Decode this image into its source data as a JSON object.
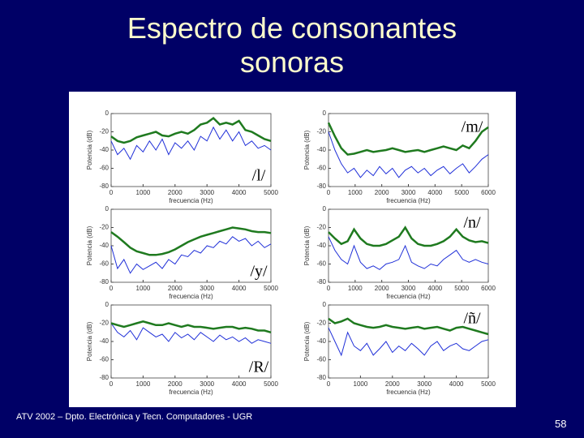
{
  "title": "Espectro de consonantes sonoras",
  "footer": "ATV 2002 – Dpto. Electrónica y Tecn. Computadores - UGR",
  "page_number": "58",
  "chart_data": [
    {
      "type": "line",
      "annotation": "/l/",
      "xlabel": "frecuencia (Hz)",
      "ylabel": "Potencia (dB)",
      "xlim": [
        0,
        5000
      ],
      "xticks": [
        0,
        1000,
        2000,
        3000,
        4000,
        5000
      ],
      "ylim": [
        -80,
        0
      ],
      "yticks": [
        0,
        -20,
        -40,
        -60,
        -80
      ],
      "x": [
        0,
        200,
        400,
        600,
        800,
        1000,
        1200,
        1400,
        1600,
        1800,
        2000,
        2200,
        2400,
        2600,
        2800,
        3000,
        3200,
        3400,
        3600,
        3800,
        4000,
        4200,
        4400,
        4600,
        4800,
        5000
      ],
      "series": [
        {
          "color": "#1f2fd8",
          "values": [
            -30,
            -45,
            -38,
            -50,
            -35,
            -42,
            -30,
            -40,
            -28,
            -45,
            -32,
            -38,
            -30,
            -40,
            -25,
            -30,
            -15,
            -28,
            -18,
            -30,
            -20,
            -35,
            -30,
            -38,
            -35,
            -40
          ]
        },
        {
          "color": "#1f7a1f",
          "values": [
            -25,
            -30,
            -32,
            -30,
            -26,
            -24,
            -22,
            -20,
            -24,
            -25,
            -22,
            -20,
            -22,
            -18,
            -12,
            -10,
            -5,
            -12,
            -10,
            -12,
            -8,
            -18,
            -20,
            -24,
            -28,
            -30
          ]
        }
      ]
    },
    {
      "type": "line",
      "annotation": "/m/",
      "xlabel": "frecuencia (Hz)",
      "ylabel": "Potencia (dB)",
      "xlim": [
        0,
        6000
      ],
      "xticks": [
        0,
        1000,
        2000,
        3000,
        4000,
        5000,
        6000
      ],
      "ylim": [
        -80,
        0
      ],
      "yticks": [
        0,
        -20,
        -40,
        -60,
        -80
      ],
      "x": [
        0,
        240,
        480,
        720,
        960,
        1200,
        1440,
        1680,
        1920,
        2160,
        2400,
        2640,
        2880,
        3120,
        3360,
        3600,
        3840,
        4080,
        4320,
        4560,
        4800,
        5040,
        5280,
        5520,
        5760,
        6000
      ],
      "series": [
        {
          "color": "#1f2fd8",
          "values": [
            -20,
            -40,
            -55,
            -65,
            -60,
            -70,
            -62,
            -68,
            -58,
            -66,
            -60,
            -70,
            -62,
            -58,
            -65,
            -60,
            -68,
            -62,
            -58,
            -66,
            -60,
            -55,
            -65,
            -58,
            -50,
            -45
          ]
        },
        {
          "color": "#1f7a1f",
          "values": [
            -10,
            -25,
            -38,
            -45,
            -44,
            -42,
            -40,
            -42,
            -41,
            -40,
            -38,
            -40,
            -42,
            -41,
            -40,
            -42,
            -40,
            -38,
            -36,
            -38,
            -40,
            -35,
            -38,
            -30,
            -20,
            -15
          ]
        }
      ]
    },
    {
      "type": "line",
      "annotation": "/y/",
      "xlabel": "frecuencia (Hz)",
      "ylabel": "Potencia (dB)",
      "xlim": [
        0,
        5000
      ],
      "xticks": [
        0,
        1000,
        2000,
        3000,
        4000,
        5000
      ],
      "ylim": [
        -80,
        0
      ],
      "yticks": [
        0,
        -20,
        -40,
        -60,
        -80
      ],
      "x": [
        0,
        200,
        400,
        600,
        800,
        1000,
        1200,
        1400,
        1600,
        1800,
        2000,
        2200,
        2400,
        2600,
        2800,
        3000,
        3200,
        3400,
        3600,
        3800,
        4000,
        4200,
        4400,
        4600,
        4800,
        5000
      ],
      "series": [
        {
          "color": "#1f2fd8",
          "values": [
            -40,
            -65,
            -55,
            -70,
            -60,
            -66,
            -62,
            -58,
            -65,
            -55,
            -60,
            -50,
            -52,
            -45,
            -48,
            -40,
            -42,
            -35,
            -38,
            -30,
            -35,
            -32,
            -40,
            -35,
            -42,
            -38
          ]
        },
        {
          "color": "#1f7a1f",
          "values": [
            -25,
            -30,
            -36,
            -42,
            -46,
            -48,
            -50,
            -50,
            -49,
            -47,
            -44,
            -40,
            -36,
            -33,
            -30,
            -28,
            -26,
            -24,
            -22,
            -20,
            -21,
            -22,
            -24,
            -25,
            -25,
            -26
          ]
        }
      ]
    },
    {
      "type": "line",
      "annotation": "/n/",
      "xlabel": "frecuencia (Hz)",
      "ylabel": "Potencia (dB)",
      "xlim": [
        0,
        6000
      ],
      "xticks": [
        0,
        1000,
        2000,
        3000,
        4000,
        5000,
        6000
      ],
      "ylim": [
        -80,
        0
      ],
      "yticks": [
        0,
        -20,
        -40,
        -60,
        -80
      ],
      "x": [
        0,
        240,
        480,
        720,
        960,
        1200,
        1440,
        1680,
        1920,
        2160,
        2400,
        2640,
        2880,
        3120,
        3360,
        3600,
        3840,
        4080,
        4320,
        4560,
        4800,
        5040,
        5280,
        5520,
        5760,
        6000
      ],
      "series": [
        {
          "color": "#1f2fd8",
          "values": [
            -30,
            -45,
            -55,
            -60,
            -40,
            -58,
            -65,
            -62,
            -66,
            -60,
            -58,
            -55,
            -40,
            -58,
            -62,
            -65,
            -60,
            -62,
            -55,
            -50,
            -45,
            -55,
            -58,
            -55,
            -58,
            -60
          ]
        },
        {
          "color": "#1f7a1f",
          "values": [
            -25,
            -32,
            -38,
            -35,
            -22,
            -32,
            -38,
            -40,
            -40,
            -38,
            -34,
            -30,
            -20,
            -32,
            -38,
            -40,
            -40,
            -38,
            -35,
            -30,
            -22,
            -30,
            -34,
            -36,
            -35,
            -37
          ]
        }
      ]
    },
    {
      "type": "line",
      "annotation": "/R/",
      "xlabel": "frecuencia (Hz)",
      "ylabel": "Potencia (dB)",
      "xlim": [
        0,
        5000
      ],
      "xticks": [
        0,
        1000,
        2000,
        3000,
        4000,
        5000
      ],
      "ylim": [
        -80,
        0
      ],
      "yticks": [
        0,
        -20,
        -40,
        -60,
        -80
      ],
      "x": [
        0,
        200,
        400,
        600,
        800,
        1000,
        1200,
        1400,
        1600,
        1800,
        2000,
        2200,
        2400,
        2600,
        2800,
        3000,
        3200,
        3400,
        3600,
        3800,
        4000,
        4200,
        4400,
        4600,
        4800,
        5000
      ],
      "series": [
        {
          "color": "#1f2fd8",
          "values": [
            -20,
            -30,
            -35,
            -28,
            -38,
            -25,
            -30,
            -35,
            -32,
            -40,
            -30,
            -36,
            -32,
            -38,
            -30,
            -35,
            -40,
            -33,
            -38,
            -35,
            -40,
            -36,
            -42,
            -38,
            -40,
            -42
          ]
        },
        {
          "color": "#1f7a1f",
          "values": [
            -20,
            -22,
            -24,
            -22,
            -20,
            -18,
            -20,
            -22,
            -22,
            -20,
            -22,
            -24,
            -22,
            -24,
            -24,
            -25,
            -26,
            -25,
            -24,
            -24,
            -26,
            -25,
            -26,
            -28,
            -28,
            -30
          ]
        }
      ]
    },
    {
      "type": "line",
      "annotation": "/ñ/",
      "xlabel": "frecuencia (Hz)",
      "ylabel": "Potencia (dB)",
      "xlim": [
        0,
        5000
      ],
      "xticks": [
        0,
        1000,
        2000,
        3000,
        4000,
        5000
      ],
      "ylim": [
        -80,
        0
      ],
      "yticks": [
        0,
        -20,
        -40,
        -60,
        -80
      ],
      "x": [
        0,
        200,
        400,
        600,
        800,
        1000,
        1200,
        1400,
        1600,
        1800,
        2000,
        2200,
        2400,
        2600,
        2800,
        3000,
        3200,
        3400,
        3600,
        3800,
        4000,
        4200,
        4400,
        4600,
        4800,
        5000
      ],
      "series": [
        {
          "color": "#1f2fd8",
          "values": [
            -25,
            -40,
            -55,
            -30,
            -45,
            -50,
            -42,
            -55,
            -48,
            -40,
            -52,
            -45,
            -50,
            -42,
            -48,
            -55,
            -45,
            -40,
            -50,
            -45,
            -42,
            -48,
            -50,
            -45,
            -40,
            -38
          ]
        },
        {
          "color": "#1f7a1f",
          "values": [
            -15,
            -20,
            -18,
            -15,
            -20,
            -22,
            -24,
            -25,
            -24,
            -22,
            -24,
            -25,
            -26,
            -25,
            -24,
            -26,
            -25,
            -24,
            -26,
            -28,
            -25,
            -24,
            -26,
            -28,
            -30,
            -32
          ]
        }
      ]
    }
  ]
}
